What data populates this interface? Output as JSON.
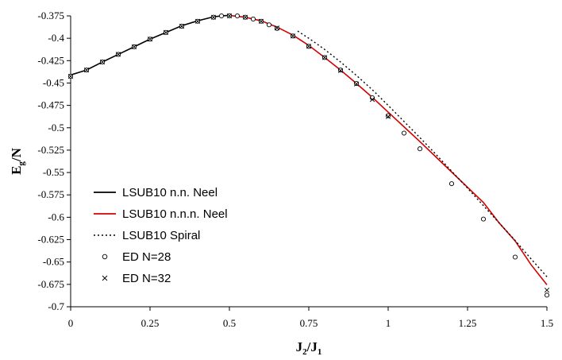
{
  "chart_data": {
    "type": "line",
    "xlabel": "J2/J1",
    "ylabel": "Eg/N",
    "xlim": [
      0,
      1.5
    ],
    "ylim": [
      -0.7,
      -0.375
    ],
    "xticks": [
      0,
      0.25,
      0.5,
      0.75,
      1,
      1.25,
      1.5
    ],
    "xtick_labels": [
      "0",
      "0.25",
      "0.5",
      "0.75",
      "1",
      "1.25",
      "1.5"
    ],
    "yticks": [
      -0.375,
      -0.4,
      -0.425,
      -0.45,
      -0.475,
      -0.5,
      -0.525,
      -0.55,
      -0.575,
      -0.6,
      -0.625,
      -0.65,
      -0.675,
      -0.7
    ],
    "ytick_labels": [
      "-0.375",
      "-0.4",
      "-0.425",
      "-0.45",
      "-0.475",
      "-0.5",
      "-0.525",
      "-0.55",
      "-0.575",
      "-0.6",
      "-0.625",
      "-0.65",
      "-0.675",
      "-0.7"
    ],
    "legend_position": "lower-left",
    "series": [
      {
        "name": "LSUB10 n.n. Neel",
        "style": "line",
        "color": "#000000",
        "x": [
          0,
          0.005,
          0.05,
          0.1,
          0.15,
          0.2,
          0.25,
          0.3,
          0.35,
          0.4,
          0.45,
          0.48,
          0.5
        ],
        "y": [
          -0.442,
          -0.4405,
          -0.4355,
          -0.4265,
          -0.418,
          -0.4095,
          -0.401,
          -0.3935,
          -0.386,
          -0.3805,
          -0.376,
          -0.3748,
          -0.3745
        ]
      },
      {
        "name": "LSUB10 n.n.n. Neel",
        "style": "line",
        "color": "#d40000",
        "x": [
          0.5,
          0.55,
          0.6,
          0.65,
          0.7,
          0.75,
          0.8,
          0.85,
          0.9,
          0.95,
          1.0,
          1.05,
          1.1,
          1.15,
          1.2,
          1.25,
          1.3,
          1.35,
          1.4,
          1.45,
          1.5
        ],
        "y": [
          -0.3745,
          -0.3765,
          -0.3805,
          -0.3875,
          -0.3965,
          -0.408,
          -0.4215,
          -0.4355,
          -0.4505,
          -0.466,
          -0.4825,
          -0.499,
          -0.5155,
          -0.5325,
          -0.5495,
          -0.5665,
          -0.5835,
          -0.6065,
          -0.6265,
          -0.653,
          -0.6755
        ]
      },
      {
        "name": "LSUB10 Spiral",
        "style": "dotted",
        "color": "#000000",
        "x": [
          0.715,
          0.75,
          0.8,
          0.85,
          0.9,
          0.95,
          1.0,
          1.05,
          1.1,
          1.15,
          1.2,
          1.25,
          1.3,
          1.35,
          1.4,
          1.45,
          1.5
        ],
        "y": [
          -0.392,
          -0.4,
          -0.4125,
          -0.4265,
          -0.4415,
          -0.4575,
          -0.475,
          -0.493,
          -0.511,
          -0.5295,
          -0.5485,
          -0.5675,
          -0.587,
          -0.6065,
          -0.626,
          -0.6465,
          -0.6665
        ]
      },
      {
        "name": "ED N=28",
        "style": "circle",
        "color": "#000000",
        "x": [
          0,
          0.05,
          0.1,
          0.15,
          0.2,
          0.25,
          0.3,
          0.35,
          0.4,
          0.45,
          0.475,
          0.5,
          0.525,
          0.55,
          0.575,
          0.6,
          0.625,
          0.65,
          0.7,
          0.75,
          0.8,
          0.85,
          0.9,
          0.95,
          1.0,
          1.05,
          1.1,
          1.2,
          1.3,
          1.4,
          1.5
        ],
        "y": [
          -0.4425,
          -0.4355,
          -0.4265,
          -0.418,
          -0.4095,
          -0.401,
          -0.3935,
          -0.3865,
          -0.381,
          -0.3765,
          -0.375,
          -0.3748,
          -0.375,
          -0.3765,
          -0.3785,
          -0.381,
          -0.385,
          -0.389,
          -0.3975,
          -0.409,
          -0.4215,
          -0.4355,
          -0.4505,
          -0.4665,
          -0.4865,
          -0.506,
          -0.5235,
          -0.5625,
          -0.602,
          -0.6445,
          -0.687
        ]
      },
      {
        "name": "ED N=32",
        "style": "cross",
        "color": "#000000",
        "x": [
          0,
          0.05,
          0.1,
          0.15,
          0.2,
          0.25,
          0.3,
          0.35,
          0.4,
          0.45,
          0.5,
          0.55,
          0.6,
          0.65,
          0.7,
          0.75,
          0.8,
          0.85,
          0.9,
          0.95,
          1.0,
          1.5
        ],
        "y": [
          -0.4425,
          -0.4355,
          -0.4265,
          -0.418,
          -0.4095,
          -0.401,
          -0.3935,
          -0.3865,
          -0.381,
          -0.3765,
          -0.375,
          -0.3765,
          -0.381,
          -0.3885,
          -0.3975,
          -0.409,
          -0.4215,
          -0.436,
          -0.451,
          -0.4685,
          -0.4875,
          -0.6815
        ]
      }
    ]
  }
}
